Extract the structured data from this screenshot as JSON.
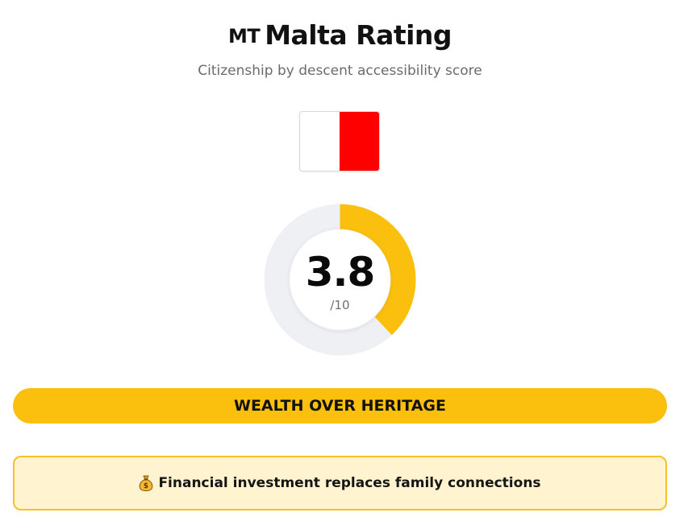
{
  "header": {
    "country_code": "MT",
    "title": "Malta Rating",
    "subtitle": "Citizenship by descent accessibility score"
  },
  "flag": {
    "icon": "malta-flag-icon",
    "colors": [
      "#ffffff",
      "#ff0000"
    ]
  },
  "score": {
    "value": "3.8",
    "max_label": "/10",
    "fraction": 0.38,
    "fill_color": "#fbc00d",
    "track_color": "#eef0f3"
  },
  "verdict": {
    "label": "WEALTH OVER HERITAGE",
    "color": "#fbc00d"
  },
  "note": {
    "icon": "money-bag-icon",
    "text": "Financial investment replaces family connections"
  }
}
